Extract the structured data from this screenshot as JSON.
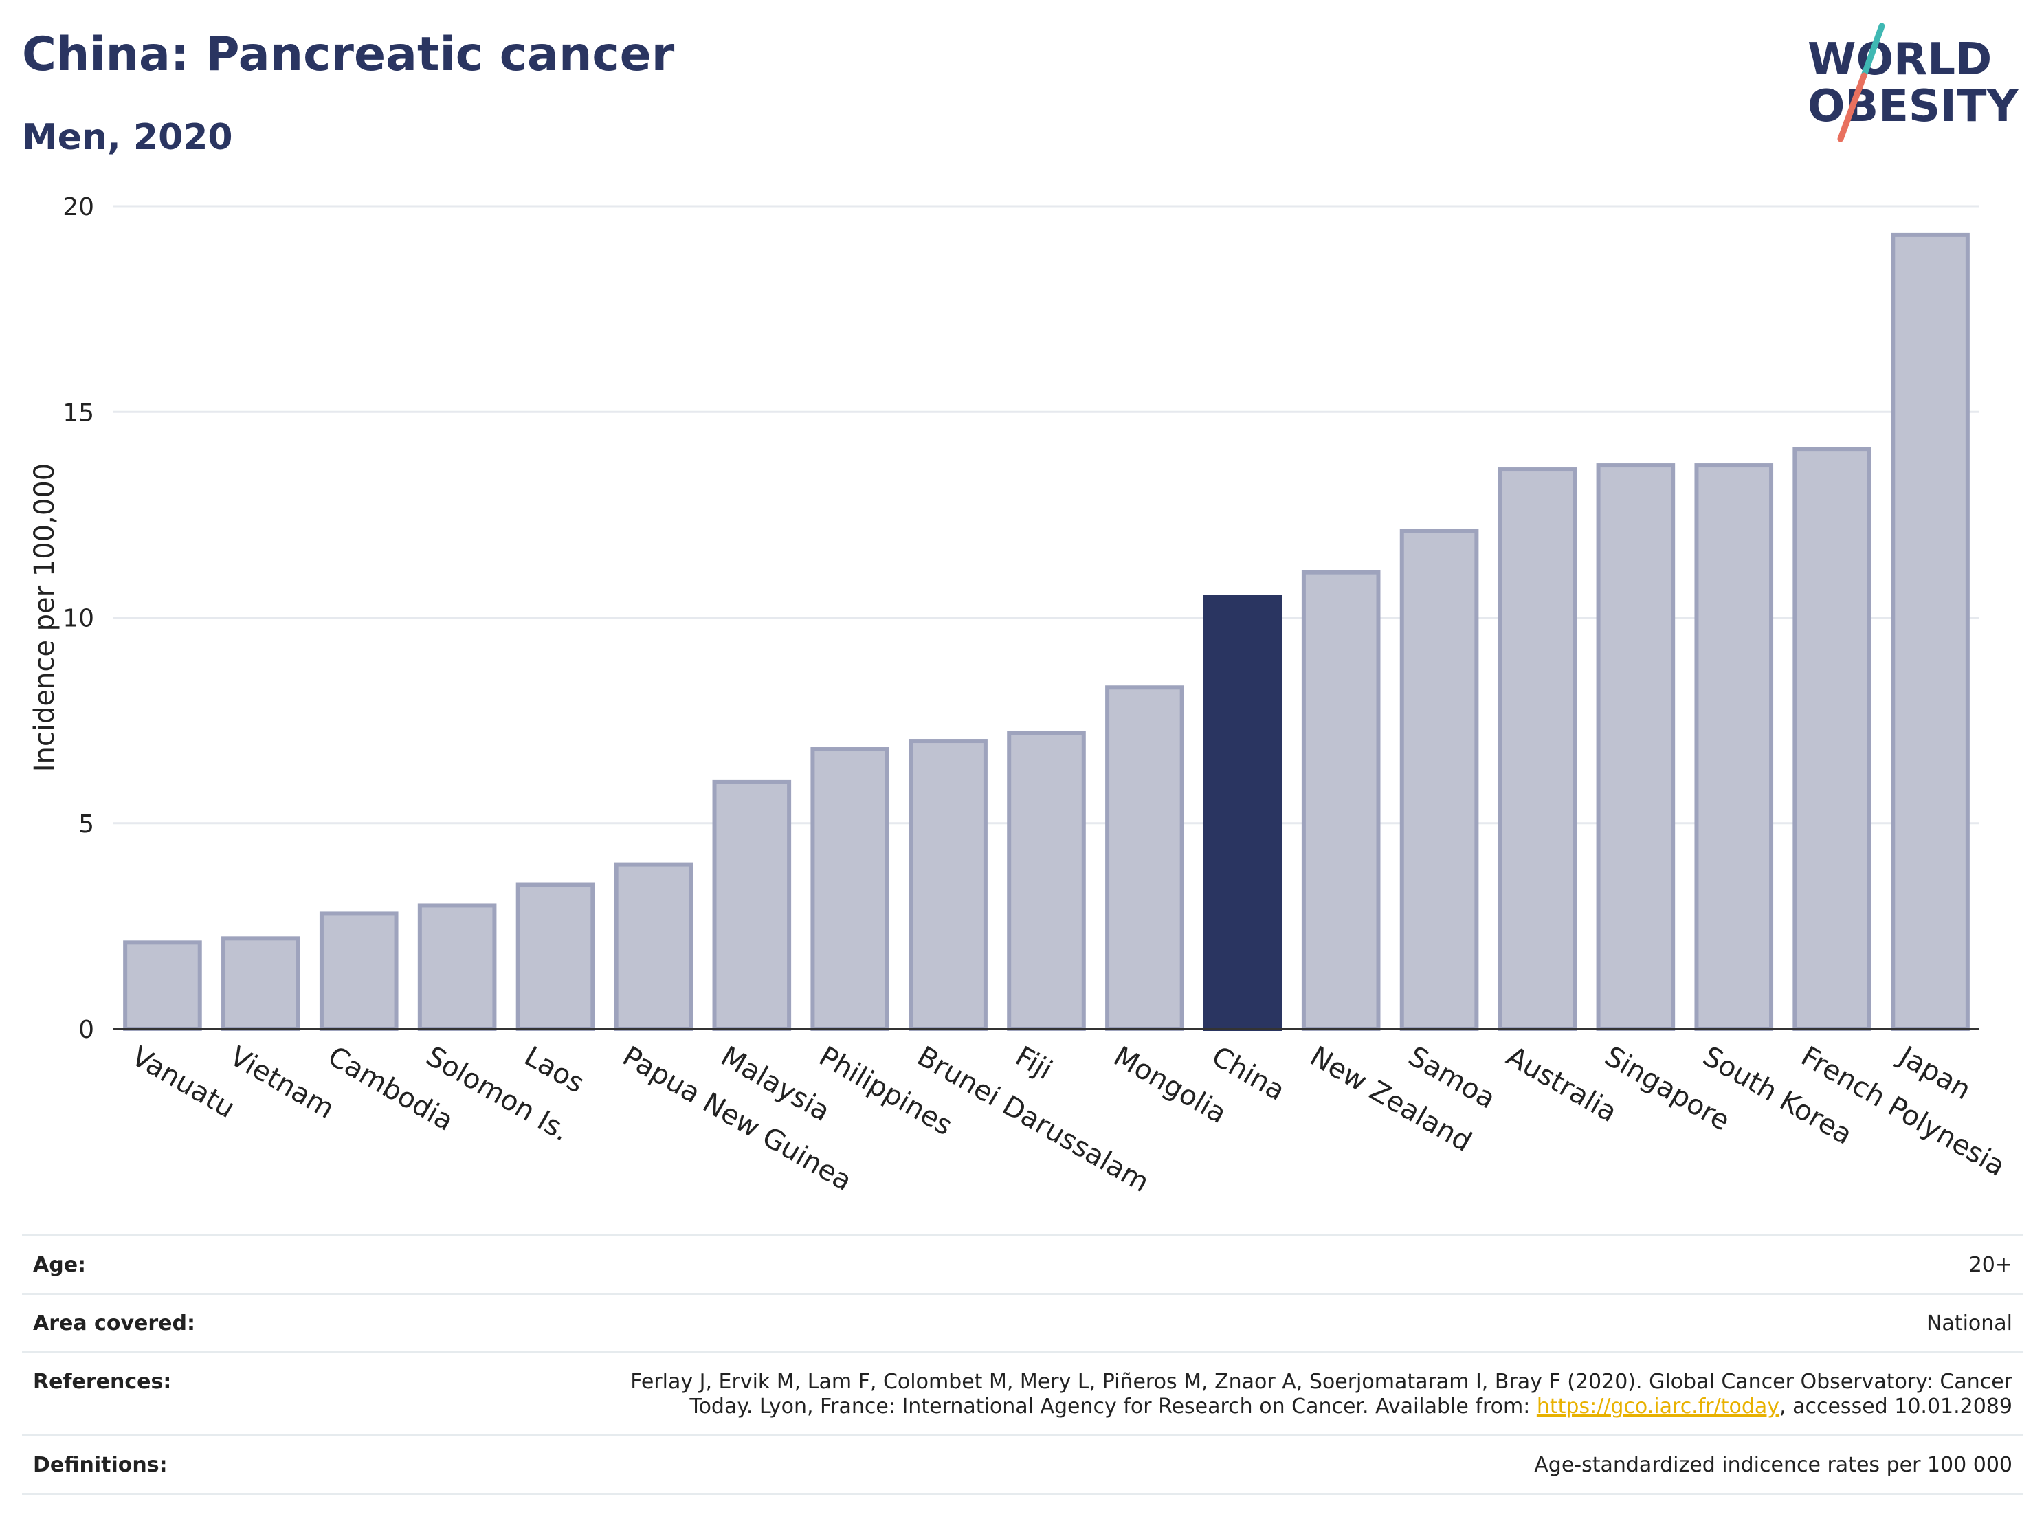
{
  "header": {
    "title": "China: Pancreatic cancer",
    "subtitle": "Men, 2020",
    "logo": {
      "line1": "WORLD",
      "line2": "OBESITY",
      "icon": "world-obesity-logo"
    }
  },
  "chart_data": {
    "type": "bar",
    "ylabel": "Incidence per 100,000",
    "xlabel": "",
    "ylim": [
      0,
      20
    ],
    "yticks": [
      0,
      5,
      10,
      15,
      20
    ],
    "grid": true,
    "categories": [
      "Vanuatu",
      "Vietnam",
      "Cambodia",
      "Solomon Is.",
      "Laos",
      "Papua New Guinea",
      "Malaysia",
      "Philippines",
      "Brunei Darussalam",
      "Fiji",
      "Mongolia",
      "China",
      "New Zealand",
      "Samoa",
      "Australia",
      "Singapore",
      "South Korea",
      "French Polynesia",
      "Japan"
    ],
    "values": [
      2.1,
      2.2,
      2.8,
      3.0,
      3.5,
      4.0,
      6.0,
      6.8,
      7.0,
      7.2,
      8.3,
      10.5,
      11.1,
      12.1,
      13.6,
      13.7,
      13.7,
      14.1,
      19.3
    ],
    "highlight": "China",
    "colors": {
      "bar": "#bfc2d1",
      "bar_outline": "#9ea3bd",
      "highlight": "#2a3561",
      "grid": "#e6e9ee",
      "axis": "#333333"
    }
  },
  "meta": {
    "age": {
      "label": "Age:",
      "value": "20+"
    },
    "area": {
      "label": "Area covered:",
      "value": "National"
    },
    "references": {
      "label": "References:",
      "text_before": "Ferlay J, Ervik M, Lam F, Colombet M, Mery L, Piñeros M, Znaor A, Soerjomataram I, Bray F (2020). Global Cancer Observatory: Cancer Today. Lyon, France: International Agency for Research on Cancer. Available from: ",
      "link": "https://gco.iarc.fr/today",
      "text_after": ", accessed 10.01.2089"
    },
    "definitions": {
      "label": "Definitions:",
      "value": "Age-standardized indicence rates per 100 000"
    }
  }
}
